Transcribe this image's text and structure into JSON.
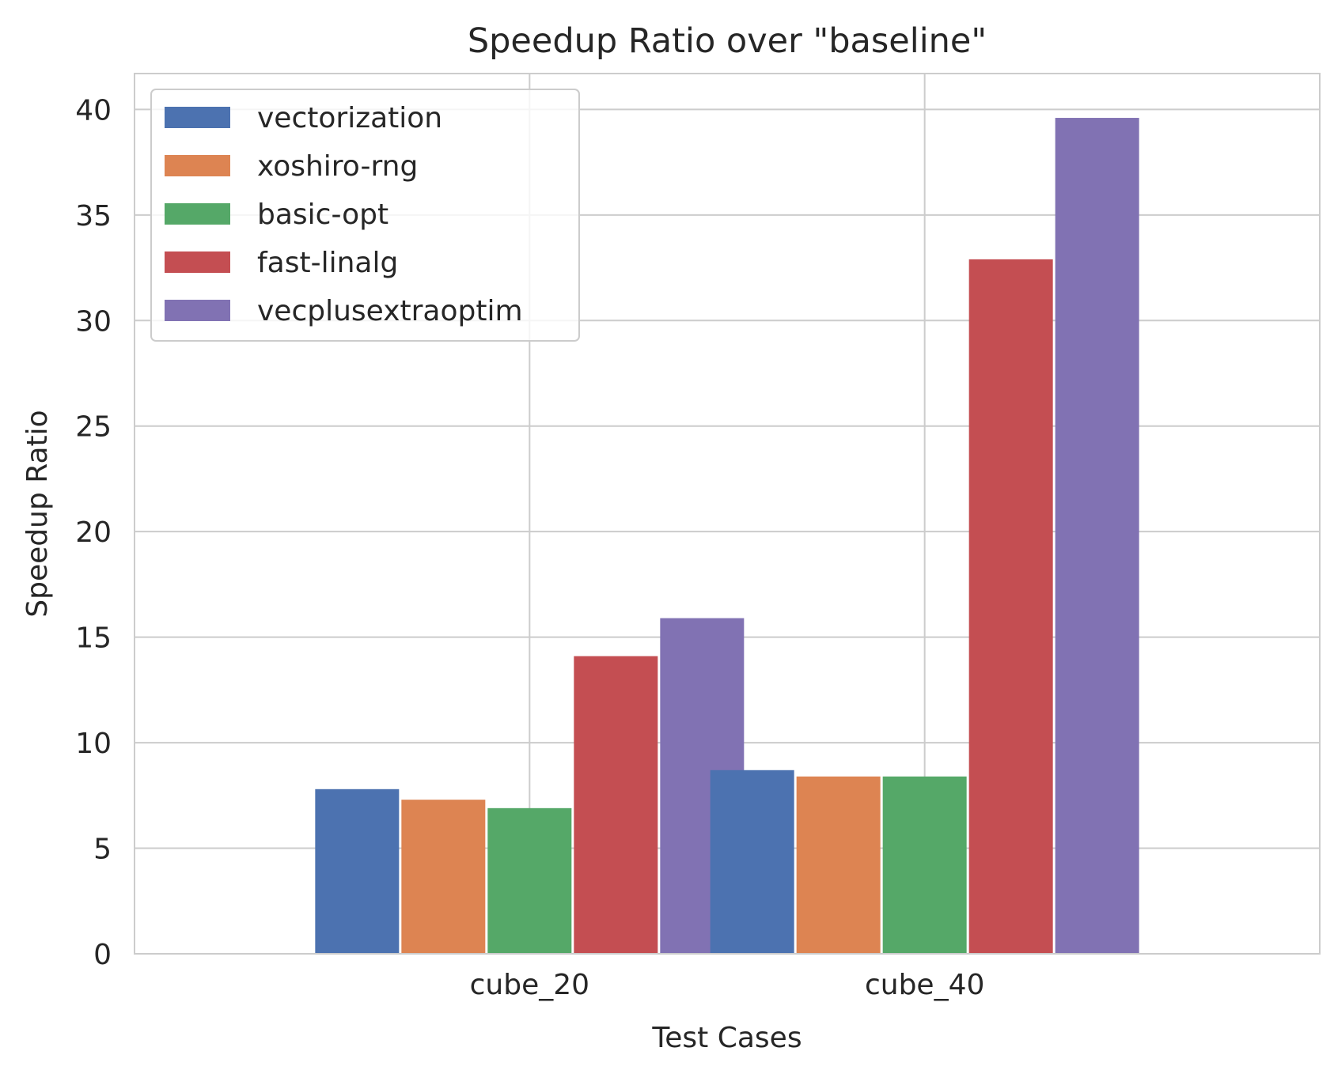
{
  "chart_data": {
    "type": "bar",
    "title": "Speedup Ratio over \"baseline\"",
    "xlabel": "Test Cases",
    "ylabel": "Speedup Ratio",
    "categories": [
      "cube_20",
      "cube_40"
    ],
    "ylim": [
      0,
      41.7
    ],
    "yticks": [
      0,
      5,
      10,
      15,
      20,
      25,
      30,
      35,
      40
    ],
    "grid": true,
    "legend_position": "top-left",
    "series": [
      {
        "name": "vectorization",
        "color": "#4c72b0",
        "values": [
          7.8,
          8.7
        ]
      },
      {
        "name": "xoshiro-rng",
        "color": "#dd8452",
        "values": [
          7.3,
          8.4
        ]
      },
      {
        "name": "basic-opt",
        "color": "#55a868",
        "values": [
          6.9,
          8.4
        ]
      },
      {
        "name": "fast-linalg",
        "color": "#c44e52",
        "values": [
          14.1,
          32.9
        ]
      },
      {
        "name": "vecplusextraoptim",
        "color": "#8172b3",
        "values": [
          15.9,
          39.6
        ]
      }
    ]
  }
}
